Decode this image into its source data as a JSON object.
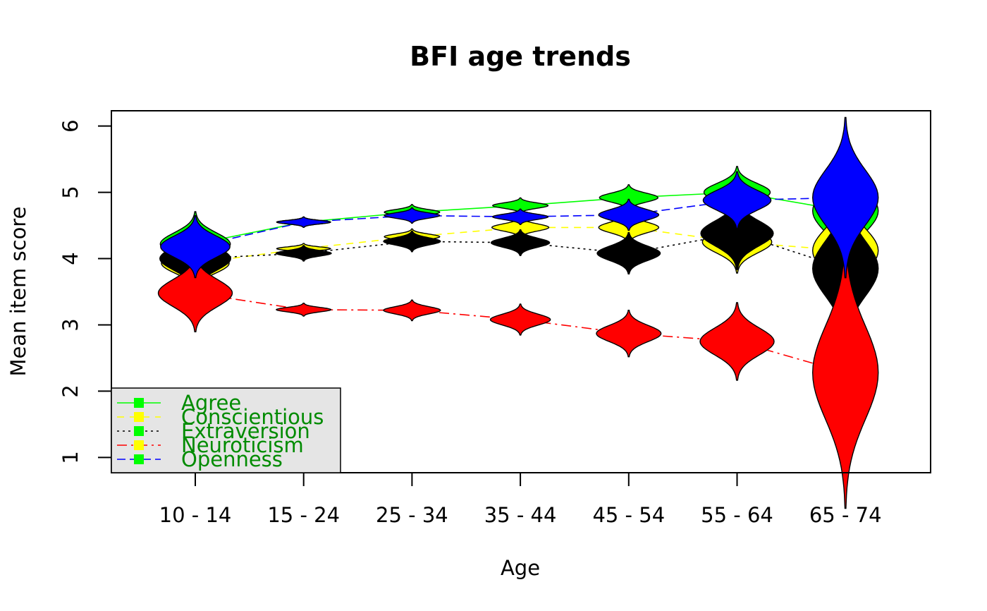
{
  "chart_data": {
    "type": "line",
    "title": "BFI age trends",
    "xlabel": "Age",
    "ylabel": "Mean item score",
    "categories": [
      "10 - 14",
      "15 - 24",
      "25 - 34",
      "35 - 44",
      "45 - 54",
      "55 - 64",
      "65 - 74"
    ],
    "yticks": [
      1,
      2,
      3,
      4,
      5,
      6
    ],
    "ylim": [
      0.77,
      6.23
    ],
    "grid": false,
    "legend_position": "bottom-left",
    "legend_text_color": "#008B00",
    "legend_bg": "#e5e5e5",
    "series": [
      {
        "name": "Agree",
        "color": "#00ff00",
        "dash": "",
        "marker_color": "#00ff00",
        "values": [
          4.22,
          4.55,
          4.7,
          4.8,
          4.92,
          5.0,
          4.72
        ],
        "spread": [
          0.25,
          0.04,
          0.06,
          0.06,
          0.1,
          0.2,
          0.48
        ]
      },
      {
        "name": "Conscientious",
        "color": "#ffff00",
        "dash": "10,8",
        "marker_color": "#ffff00",
        "values": [
          3.93,
          4.15,
          4.33,
          4.47,
          4.47,
          4.25,
          4.12
        ],
        "spread": [
          0.22,
          0.04,
          0.06,
          0.08,
          0.12,
          0.24,
          0.5
        ]
      },
      {
        "name": "Extraversion",
        "color": "#000000",
        "dash": "3,5",
        "marker_color": "#00ff00",
        "values": [
          4.0,
          4.08,
          4.26,
          4.24,
          4.08,
          4.38,
          3.85
        ],
        "spread": [
          0.26,
          0.06,
          0.08,
          0.1,
          0.16,
          0.28,
          0.62
        ]
      },
      {
        "name": "Neuroticism",
        "color": "#ff0000",
        "dash": "14,6,3,6",
        "marker_color": "#ffff00",
        "values": [
          3.48,
          3.23,
          3.22,
          3.08,
          2.87,
          2.75,
          2.28
        ],
        "spread": [
          0.3,
          0.05,
          0.08,
          0.12,
          0.18,
          0.3,
          1.05
        ]
      },
      {
        "name": "Openness",
        "color": "#0000ff",
        "dash": "12,6",
        "marker_color": "#00ff00",
        "values": [
          4.18,
          4.55,
          4.65,
          4.63,
          4.66,
          4.88,
          4.92
        ],
        "spread": [
          0.24,
          0.04,
          0.06,
          0.06,
          0.12,
          0.22,
          0.62
        ]
      }
    ],
    "violin_draw_order": [
      "Agree",
      "Conscientious",
      "Extraversion",
      "Neuroticism",
      "Openness"
    ]
  }
}
